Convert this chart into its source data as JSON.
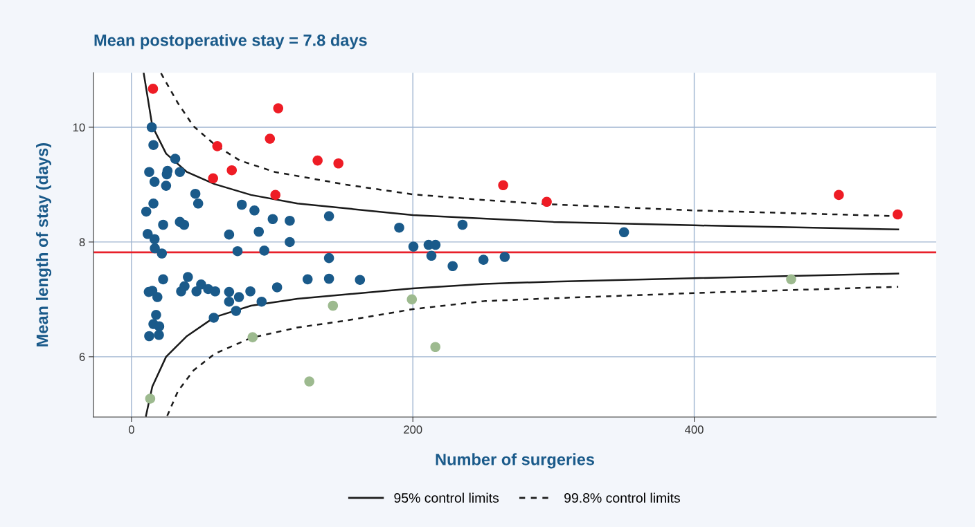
{
  "chart_data": {
    "type": "scatter",
    "title": "Mean postoperative stay = 7.8 days",
    "xlabel": "Number of surgeries",
    "ylabel": "Mean length of stay (days)",
    "xlim": [
      -27,
      572
    ],
    "ylim": [
      4.95,
      10.95
    ],
    "xticks": [
      0,
      200,
      400
    ],
    "yticks": [
      6,
      8,
      10
    ],
    "grid": true,
    "legend": "bottom",
    "marker": "circle",
    "ref_lines": [
      {
        "axis": "y",
        "value": 7.82,
        "color": "#e8202a",
        "line_style": "solid"
      }
    ],
    "series": [
      {
        "color": "#1a5a8a",
        "x": [
          14.4,
          15.6,
          31.1,
          12.6,
          25.6,
          25.1,
          34.4,
          16.4,
          24.6,
          45.4,
          47.4,
          15.6,
          10.5,
          22.5,
          34.4,
          37.4,
          11.5,
          16.4,
          16.6,
          21.6,
          69.4,
          78.4,
          87.4,
          100.4,
          112.5,
          112.5,
          90.5,
          75.4,
          94.4,
          22.5,
          40.1,
          37.7,
          35.3,
          12.3,
          14.8,
          18.4,
          46.2,
          49.5,
          54.5,
          59.5,
          69.4,
          69.4,
          76.4,
          84.5,
          92.5,
          103.5,
          74.3,
          58.5,
          17.5,
          15.6,
          19.7,
          12.6,
          19.5,
          140.4,
          190.3,
          235.3,
          200.4,
          211.2,
          216.1,
          213.2,
          140.4,
          228.3,
          250.2,
          265.3,
          125.2,
          140.4,
          162.4,
          350.1
        ],
        "values": [
          10.0,
          9.69,
          9.45,
          9.22,
          9.24,
          9.18,
          9.22,
          9.05,
          8.98,
          8.84,
          8.67,
          8.67,
          8.53,
          8.3,
          8.35,
          8.3,
          8.14,
          8.05,
          7.89,
          7.8,
          8.13,
          8.65,
          8.55,
          8.4,
          8.37,
          8.0,
          8.18,
          7.84,
          7.85,
          7.35,
          7.39,
          7.23,
          7.14,
          7.13,
          7.15,
          7.04,
          7.14,
          7.26,
          7.18,
          7.14,
          7.13,
          6.96,
          7.04,
          7.14,
          6.96,
          7.21,
          6.8,
          6.68,
          6.73,
          6.57,
          6.53,
          6.36,
          6.38,
          8.45,
          8.25,
          8.3,
          7.92,
          7.95,
          7.95,
          7.76,
          7.72,
          7.58,
          7.69,
          7.74,
          7.35,
          7.36,
          7.34,
          8.17
        ]
      },
      {
        "color": "#ee1c25",
        "x": [
          15.3,
          61,
          98.4,
          104.3,
          71.3,
          58,
          102.3,
          132.3,
          147.1,
          264.2,
          295.2,
          502.8,
          544.6
        ],
        "values": [
          10.67,
          9.67,
          9.8,
          10.33,
          9.25,
          9.11,
          8.82,
          9.42,
          9.37,
          8.99,
          8.7,
          8.82,
          8.48
        ]
      },
      {
        "color": "#9dba8f",
        "x": [
          13.3,
          86.1,
          126.4,
          143.2,
          199.3,
          216,
          468.9
        ],
        "values": [
          5.27,
          6.34,
          5.57,
          6.89,
          7.0,
          6.17,
          7.35
        ]
      },
      {
        "type": "line",
        "name": "95% control limits",
        "color": "#1a1a1a",
        "line_style": "solid",
        "marker": "none",
        "x": [
          8.7,
          14.8,
          24.6,
          39.4,
          59,
          85,
          118,
          200,
          300,
          400,
          545
        ],
        "values": [
          10.94,
          10.02,
          9.54,
          9.22,
          9.01,
          8.82,
          8.67,
          8.47,
          8.35,
          8.29,
          8.22
        ]
      },
      {
        "type": "line",
        "color": "#1a1a1a",
        "line_style": "solid",
        "marker": "none",
        "x": [
          10.3,
          14.8,
          24.6,
          39.4,
          59,
          85,
          118,
          200,
          251,
          300,
          400,
          545
        ],
        "values": [
          4.97,
          5.48,
          6.0,
          6.36,
          6.69,
          6.89,
          7.01,
          7.19,
          7.27,
          7.31,
          7.37,
          7.45
        ]
      },
      {
        "type": "line",
        "name": "99.8% control limits",
        "color": "#1a1a1a",
        "line_style": "dashed",
        "marker": "none",
        "x": [
          21,
          33,
          44,
          59,
          77,
          102,
          152.5,
          200,
          251,
          295,
          400,
          545
        ],
        "values": [
          10.94,
          10.42,
          10.02,
          9.7,
          9.42,
          9.22,
          9.0,
          8.83,
          8.73,
          8.66,
          8.55,
          8.45
        ]
      },
      {
        "type": "line",
        "color": "#1a1a1a",
        "line_style": "dashed",
        "marker": "none",
        "x": [
          25.4,
          33,
          44,
          59,
          85,
          118,
          152.5,
          200,
          251,
          300,
          400,
          545
        ],
        "values": [
          4.97,
          5.4,
          5.76,
          6.05,
          6.33,
          6.51,
          6.63,
          6.83,
          6.97,
          7.02,
          7.11,
          7.22
        ]
      }
    ]
  }
}
